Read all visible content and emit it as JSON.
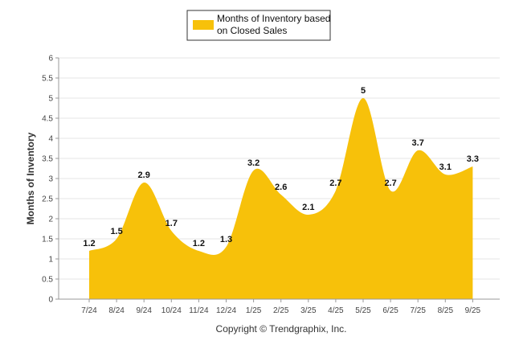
{
  "chart_data": {
    "type": "area",
    "title": "",
    "legend": {
      "line1": "Months of Inventory based",
      "line2": "on Closed Sales",
      "placement": "top-center"
    },
    "series": [
      {
        "name": "Months of Inventory based on Closed Sales",
        "values": [
          1.2,
          1.5,
          2.9,
          1.7,
          1.2,
          1.3,
          3.2,
          2.6,
          2.1,
          2.7,
          5,
          2.7,
          3.7,
          3.1,
          3.3
        ]
      }
    ],
    "categories": [
      "7/24",
      "8/24",
      "9/24",
      "10/24",
      "11/24",
      "12/24",
      "1/25",
      "2/25",
      "3/25",
      "4/25",
      "5/25",
      "6/25",
      "7/25",
      "8/25",
      "9/25"
    ],
    "data_labels": [
      "1.2",
      "1.5",
      "2.9",
      "1.7",
      "1.2",
      "1.3",
      "3.2",
      "2.6",
      "2.1",
      "2.7",
      "5",
      "2.7",
      "3.7",
      "3.1",
      "3.3"
    ],
    "y_ticks": [
      "0",
      "0.5",
      "1",
      "1.5",
      "2",
      "2.5",
      "3",
      "3.5",
      "4",
      "4.5",
      "5",
      "5.5",
      "6"
    ],
    "ylim": [
      0,
      6
    ],
    "xlabel": "",
    "ylabel": "Months of Inventory",
    "grid": true,
    "colors": {
      "area": "#F7C10A",
      "grid": "#E6E6E6",
      "axis": "#999999",
      "legend_border": "#333333"
    }
  },
  "footer": {
    "copyright": "Copyright © Trendgraphix, Inc."
  }
}
